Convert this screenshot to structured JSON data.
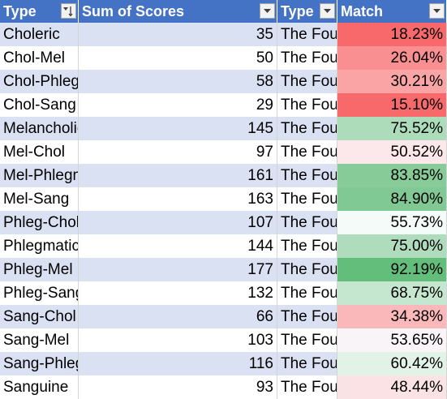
{
  "header": {
    "col_type": "Type",
    "col_sum": "Sum of Scores",
    "col_type2": "Type",
    "col_match": "Match"
  },
  "rows": [
    {
      "type": "Choleric",
      "sum": "35",
      "type2": "The Four",
      "match": "18.23%",
      "color": "#f8696b",
      "band": true
    },
    {
      "type": "Chol-Mel",
      "sum": "50",
      "type2": "The Four",
      "match": "26.04%",
      "color": "#f98f91",
      "band": false
    },
    {
      "type": "Chol-Phlegm",
      "sum": "58",
      "type2": "The Four",
      "match": "30.21%",
      "color": "#faa4a6",
      "band": true
    },
    {
      "type": "Chol-Sang",
      "sum": "29",
      "type2": "The Four",
      "match": "15.10%",
      "color": "#f8696b",
      "band": false
    },
    {
      "type": "Melancholic",
      "sum": "145",
      "type2": "The Four",
      "match": "75.52%",
      "color": "#acdcba",
      "band": true
    },
    {
      "type": "Mel-Chol",
      "sum": "97",
      "type2": "The Four",
      "match": "50.52%",
      "color": "#fce8ea",
      "band": false
    },
    {
      "type": "Mel-Phlegm",
      "sum": "161",
      "type2": "The Four",
      "match": "83.85%",
      "color": "#86cb98",
      "band": true
    },
    {
      "type": "Mel-Sang",
      "sum": "163",
      "type2": "The Four",
      "match": "84.90%",
      "color": "#81c994",
      "band": false
    },
    {
      "type": "Phleg-Chol",
      "sum": "107",
      "type2": "The Four",
      "match": "55.73%",
      "color": "#f5fbf8",
      "band": true
    },
    {
      "type": "Phlegmatic",
      "sum": "144",
      "type2": "The Four",
      "match": "75.00%",
      "color": "#aedcbc",
      "band": false
    },
    {
      "type": "Phleg-Mel",
      "sum": "177",
      "type2": "The Four",
      "match": "92.19%",
      "color": "#63be7b",
      "band": true
    },
    {
      "type": "Phleg-Sang",
      "sum": "132",
      "type2": "The Four",
      "match": "68.75%",
      "color": "#c6e7cf",
      "band": false
    },
    {
      "type": "Sang-Chol",
      "sum": "66",
      "type2": "The Four",
      "match": "34.38%",
      "color": "#fbb8ba",
      "band": true
    },
    {
      "type": "Sang-Mel",
      "sum": "103",
      "type2": "The Four",
      "match": "53.65%",
      "color": "#f9f4f8",
      "band": false
    },
    {
      "type": "Sang-Phlegm",
      "sum": "116",
      "type2": "The Four",
      "match": "60.42%",
      "color": "#e2f2e7",
      "band": true
    },
    {
      "type": "Sanguine",
      "sum": "93",
      "type2": "The Four",
      "match": "48.44%",
      "color": "#fbe2e4",
      "band": false
    }
  ],
  "icons": {
    "sort_filter": "sort-filter-icon",
    "dropdown": "dropdown-arrow-icon"
  }
}
